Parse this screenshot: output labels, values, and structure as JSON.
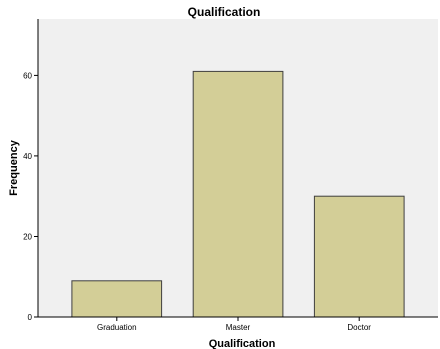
{
  "chart_data": {
    "type": "bar",
    "title": "Qualification",
    "xlabel": "Qualification",
    "ylabel": "Frequency",
    "categories": [
      "Graduation",
      "Master",
      "Doctor"
    ],
    "values": [
      9,
      61,
      30
    ],
    "ylim": [
      0,
      74
    ],
    "yticks": [
      0,
      20,
      40,
      60
    ],
    "grid": false,
    "legend": "none",
    "colors": {
      "bar_fill": "#d3ce97",
      "bar_stroke": "#3f3f3f",
      "plot_background": "#f0f0f0",
      "axis": "#000000"
    }
  }
}
